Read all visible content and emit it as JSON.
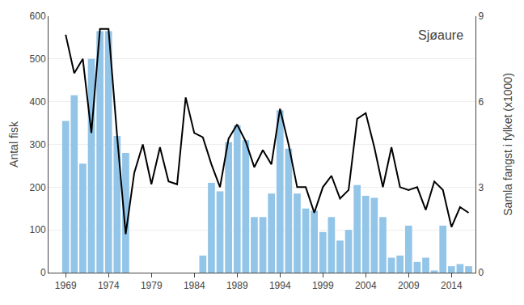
{
  "chart_data": {
    "type": "bar",
    "title": "Sjøaure",
    "ylabel": "Antal fisk",
    "y2label": "Samla fangst i fylket (x1000)",
    "xlim": [
      1967.0,
      2016.8
    ],
    "xticks": [
      1969,
      1974,
      1979,
      1984,
      1989,
      1994,
      1999,
      2004,
      2009,
      2014
    ],
    "ylim": [
      0,
      600
    ],
    "yticks": [
      0,
      100,
      200,
      300,
      400,
      500,
      600
    ],
    "y2lim": [
      0,
      9
    ],
    "y2ticks": [
      0,
      3,
      6,
      9
    ],
    "grid": "y",
    "series": [
      {
        "type": "bar",
        "color": "#92C5E8",
        "x": [
          1969,
          1970,
          1971,
          1972,
          1973,
          1974,
          1975,
          1976,
          1985,
          1986,
          1987,
          1988,
          1989,
          1990,
          1991,
          1992,
          1993,
          1994,
          1995,
          1996,
          1997,
          1998,
          1999,
          2000,
          2001,
          2002,
          2003,
          2004,
          2005,
          2006,
          2007,
          2008,
          2009,
          2010,
          2011,
          2012,
          2013,
          2014,
          2015,
          2016
        ],
        "values": [
          355,
          415,
          255,
          500,
          565,
          565,
          320,
          280,
          40,
          210,
          190,
          305,
          345,
          310,
          130,
          130,
          185,
          380,
          290,
          185,
          150,
          145,
          95,
          130,
          75,
          100,
          205,
          180,
          175,
          130,
          35,
          40,
          110,
          25,
          35,
          5,
          110,
          15,
          20,
          15
        ]
      },
      {
        "type": "line",
        "color": "#000000",
        "axis": "y2",
        "x": [
          1969,
          1970,
          1971,
          1972,
          1973,
          1974,
          1975,
          1976,
          1977,
          1978,
          1979,
          1980,
          1981,
          1982,
          1983,
          1984,
          1985,
          1986,
          1987,
          1988,
          1989,
          1990,
          1991,
          1992,
          1993,
          1994,
          1995,
          1996,
          1997,
          1998,
          1999,
          2000,
          2001,
          2002,
          2003,
          2004,
          2005,
          2006,
          2007,
          2008,
          2009,
          2010,
          2011,
          2012,
          2013,
          2014,
          2015,
          2016
        ],
        "values": [
          8.35,
          7.0,
          7.5,
          4.9,
          8.55,
          8.55,
          4.8,
          1.35,
          3.5,
          4.5,
          3.1,
          4.4,
          3.2,
          3.1,
          6.15,
          4.9,
          4.75,
          3.8,
          3.0,
          4.7,
          5.2,
          4.6,
          3.7,
          4.3,
          3.8,
          5.75,
          4.5,
          3.0,
          3.0,
          2.1,
          3.0,
          3.4,
          2.6,
          2.9,
          5.4,
          5.6,
          4.4,
          3.0,
          4.4,
          3.0,
          2.9,
          3.0,
          2.2,
          3.2,
          2.9,
          1.6,
          2.3,
          2.1
        ]
      }
    ]
  }
}
